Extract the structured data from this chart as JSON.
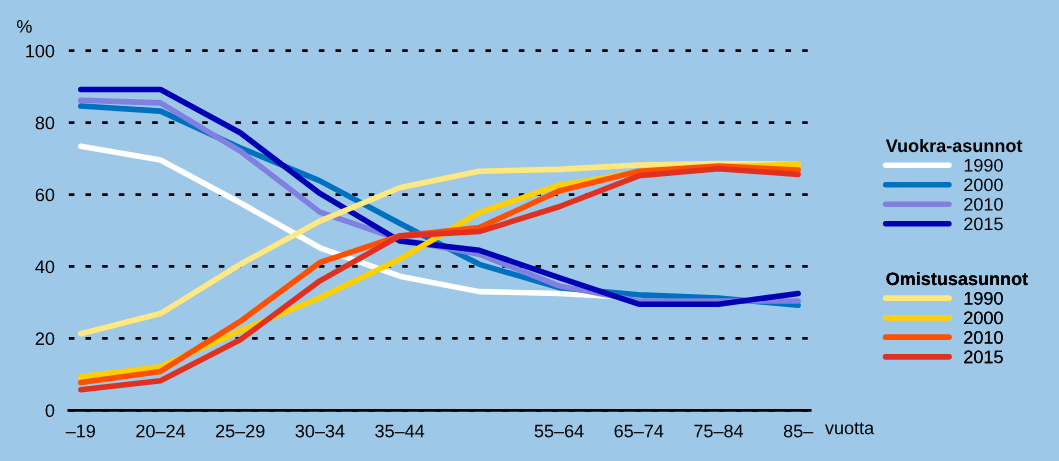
{
  "chart_data": {
    "type": "line",
    "ylabel": "%",
    "xlabel": "vuotta",
    "categories": [
      "–19",
      "20–24",
      "25–29",
      "30–34",
      "35–44",
      null,
      "55–64",
      "65–74",
      "75–84",
      "85–"
    ],
    "ylim": [
      0,
      100
    ],
    "yticks": [
      0,
      20,
      40,
      60,
      80,
      100
    ],
    "grid": "y",
    "legend": "right",
    "line_style": "solid",
    "marker": "none",
    "annotations": [
      "Vuokra-asunnot",
      "Omistusasunnot"
    ],
    "series": [
      {
        "name": "1990",
        "color": "#ffffff",
        "values": [
          73.4,
          69.6,
          57.7,
          45.2,
          37.3,
          33.0,
          32.5,
          31.3,
          null,
          null
        ]
      },
      {
        "name": "2000",
        "color": "#0070c0",
        "values": [
          84.6,
          83.2,
          73.0,
          63.8,
          52.0,
          40.6,
          34.1,
          32.1,
          31.2,
          29.2
        ]
      },
      {
        "name": "2010",
        "color": "#8080e0",
        "values": [
          86.2,
          85.5,
          72.1,
          55.1,
          47.5,
          43.4,
          34.6,
          30.4,
          30.4,
          30.4
        ]
      },
      {
        "name": "2015",
        "color": "#0000b4",
        "values": [
          89.2,
          89.2,
          77.2,
          60.3,
          47.1,
          44.5,
          36.9,
          29.5,
          29.5,
          32.5
        ]
      },
      {
        "name": "1990",
        "color": "#ffe880",
        "values": [
          21.3,
          26.9,
          40.6,
          52.6,
          61.9,
          66.5,
          67.0,
          68.2,
          68.6,
          68.4
        ]
      },
      {
        "name": "2000",
        "color": "#ffd000",
        "values": [
          9.3,
          12.1,
          22.1,
          31.3,
          42.0,
          55.0,
          62.6,
          66.3,
          67.7,
          68.4
        ]
      },
      {
        "name": "2010",
        "color": "#ff5000",
        "values": [
          7.7,
          10.8,
          24.7,
          41.1,
          48.5,
          50.8,
          61.0,
          66.5,
          67.9,
          66.8
        ]
      },
      {
        "name": "2015",
        "color": "#e03020",
        "values": [
          5.7,
          8.2,
          19.6,
          36.0,
          48.5,
          49.7,
          56.6,
          65.2,
          67.2,
          65.6
        ]
      }
    ]
  }
}
